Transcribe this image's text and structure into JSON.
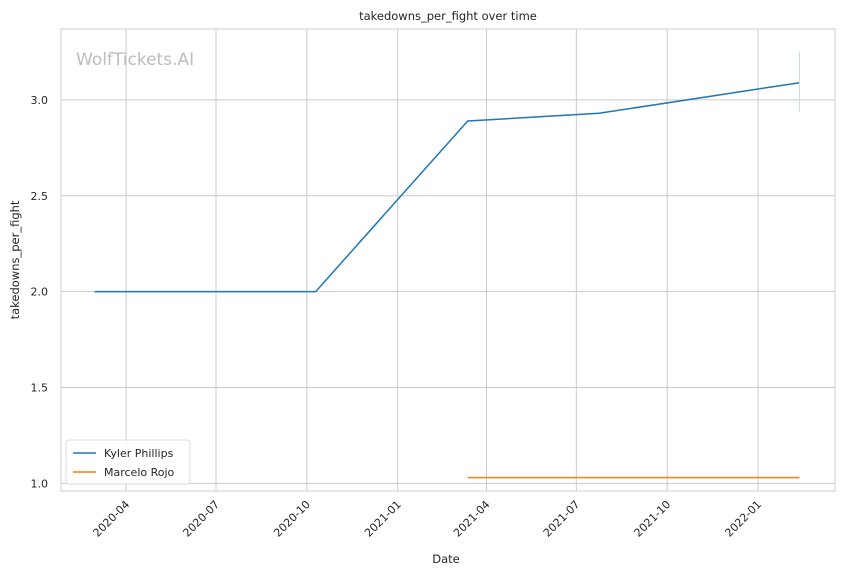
{
  "chart_data": {
    "type": "line",
    "title": "takedowns_per_fight over time",
    "xlabel": "Date",
    "ylabel": "takedowns_per_fight",
    "watermark": "WolfTickets.AI",
    "x_ticks": [
      "2020-04",
      "2020-07",
      "2020-10",
      "2021-01",
      "2021-04",
      "2021-07",
      "2021-10",
      "2022-01"
    ],
    "y_ticks": [
      1.0,
      1.5,
      2.0,
      2.5,
      3.0
    ],
    "y_tick_labels": [
      "1.0",
      "1.5",
      "2.0",
      "2.5",
      "3.0"
    ],
    "xlim": [
      "2020-01-26",
      "2022-03-20"
    ],
    "ylim": [
      0.96,
      3.37
    ],
    "grid": true,
    "legend_position": "lower-left",
    "series": [
      {
        "name": "Kyler Phillips",
        "color": "#1f77b4",
        "x": [
          "2020-02-29",
          "2020-10-10",
          "2021-03-13",
          "2021-07-24",
          "2022-02-12"
        ],
        "y": [
          2.0,
          2.0,
          2.89,
          2.93,
          3.09
        ]
      },
      {
        "name": "Marcelo Rojo",
        "color": "#ff7f0e",
        "x": [
          "2021-03-13",
          "2022-02-12"
        ],
        "y": [
          1.03,
          1.03
        ]
      }
    ],
    "annotations": [
      {
        "type": "vertical-marker",
        "x": "2022-02-12",
        "y_range": [
          2.94,
          3.25
        ],
        "color": "#c8d9e8"
      }
    ]
  }
}
